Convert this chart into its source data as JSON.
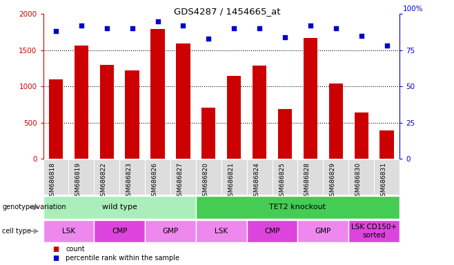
{
  "title": "GDS4287 / 1454665_at",
  "samples": [
    "GSM686818",
    "GSM686819",
    "GSM686822",
    "GSM686823",
    "GSM686826",
    "GSM686827",
    "GSM686820",
    "GSM686821",
    "GSM686824",
    "GSM686825",
    "GSM686828",
    "GSM686829",
    "GSM686830",
    "GSM686831"
  ],
  "counts": [
    1100,
    1560,
    1300,
    1220,
    1790,
    1590,
    710,
    1140,
    1290,
    690,
    1670,
    1040,
    640,
    390
  ],
  "percentile": [
    88,
    92,
    90,
    90,
    95,
    92,
    83,
    90,
    90,
    84,
    92,
    90,
    85,
    78
  ],
  "ylim_left": [
    0,
    2000
  ],
  "ylim_right": [
    0,
    100
  ],
  "yticks_left": [
    0,
    500,
    1000,
    1500,
    2000
  ],
  "yticks_right": [
    0,
    25,
    50,
    75,
    100
  ],
  "bar_color": "#cc0000",
  "dot_color": "#0000cc",
  "gridline_color": "#000000",
  "genotype_groups": [
    {
      "label": "wild type",
      "start": 0,
      "end": 6,
      "color": "#aaeebb"
    },
    {
      "label": "TET2 knockout",
      "start": 6,
      "end": 14,
      "color": "#44cc55"
    }
  ],
  "cell_type_groups": [
    {
      "label": "LSK",
      "start": 0,
      "end": 2,
      "color": "#ee88ee"
    },
    {
      "label": "CMP",
      "start": 2,
      "end": 4,
      "color": "#dd44dd"
    },
    {
      "label": "GMP",
      "start": 4,
      "end": 6,
      "color": "#ee88ee"
    },
    {
      "label": "LSK",
      "start": 6,
      "end": 8,
      "color": "#ee88ee"
    },
    {
      "label": "CMP",
      "start": 8,
      "end": 10,
      "color": "#dd44dd"
    },
    {
      "label": "GMP",
      "start": 10,
      "end": 12,
      "color": "#ee88ee"
    },
    {
      "label": "LSK CD150+\nsorted",
      "start": 12,
      "end": 14,
      "color": "#dd44dd"
    }
  ],
  "genotype_label": "genotype/variation",
  "celltype_label": "cell type",
  "legend_count_label": "count",
  "legend_pct_label": "percentile rank within the sample",
  "xtick_bg": "#dddddd"
}
